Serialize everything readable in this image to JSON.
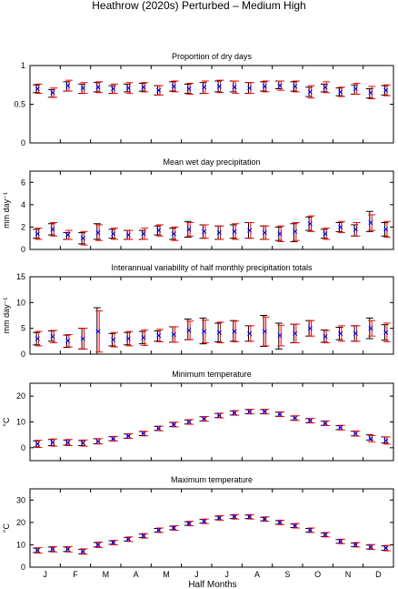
{
  "figure": {
    "title": "Heathrow (2020s) Perturbed – Medium High",
    "xlabel": "Half Months",
    "month_labels": [
      "J",
      "F",
      "M",
      "A",
      "M",
      "J",
      "J",
      "A",
      "S",
      "O",
      "N",
      "D"
    ]
  },
  "colors": {
    "observed": "#000000",
    "model": "#ff0000",
    "marker": "#0000ff"
  },
  "chart_data": [
    {
      "type": "scatter",
      "title": "Proportion of dry days",
      "ylabel": "",
      "ylim": [
        0,
        1
      ],
      "yticks": [
        0,
        0.5,
        1
      ],
      "ytick_labels": [
        "0",
        "0.5",
        "1"
      ],
      "x": [
        1,
        2,
        3,
        4,
        5,
        6,
        7,
        8,
        9,
        10,
        11,
        12,
        13,
        14,
        15,
        16,
        17,
        18,
        19,
        20,
        21,
        22,
        23,
        24
      ],
      "obs_mean": [
        0.7,
        0.64,
        0.73,
        0.7,
        0.72,
        0.69,
        0.71,
        0.72,
        0.68,
        0.73,
        0.7,
        0.71,
        0.73,
        0.73,
        0.71,
        0.73,
        0.75,
        0.73,
        0.66,
        0.71,
        0.66,
        0.69,
        0.64,
        0.68
      ],
      "obs_err": [
        0.05,
        0.05,
        0.06,
        0.06,
        0.06,
        0.05,
        0.05,
        0.05,
        0.06,
        0.06,
        0.06,
        0.07,
        0.07,
        0.07,
        0.07,
        0.06,
        0.05,
        0.06,
        0.06,
        0.05,
        0.05,
        0.06,
        0.06,
        0.06
      ],
      "model_mean": [
        0.7,
        0.65,
        0.74,
        0.71,
        0.72,
        0.7,
        0.71,
        0.72,
        0.68,
        0.73,
        0.7,
        0.72,
        0.73,
        0.72,
        0.71,
        0.73,
        0.74,
        0.73,
        0.66,
        0.72,
        0.66,
        0.7,
        0.65,
        0.68
      ],
      "model_err": [
        0.06,
        0.06,
        0.07,
        0.07,
        0.07,
        0.06,
        0.07,
        0.06,
        0.06,
        0.07,
        0.07,
        0.08,
        0.08,
        0.08,
        0.07,
        0.07,
        0.06,
        0.07,
        0.08,
        0.07,
        0.06,
        0.07,
        0.08,
        0.07
      ]
    },
    {
      "type": "scatter",
      "title": "Mean wet day precipitation",
      "ylabel": "mm day⁻¹",
      "ylim": [
        0,
        7
      ],
      "yticks": [
        0,
        2,
        4,
        6
      ],
      "ytick_labels": [
        "0",
        "2",
        "4",
        "6"
      ],
      "x": [
        1,
        2,
        3,
        4,
        5,
        6,
        7,
        8,
        9,
        10,
        11,
        12,
        13,
        14,
        15,
        16,
        17,
        18,
        19,
        20,
        21,
        22,
        23,
        24
      ],
      "obs_mean": [
        1.4,
        1.8,
        1.2,
        1.0,
        1.6,
        1.4,
        1.3,
        1.3,
        1.7,
        1.4,
        1.8,
        1.6,
        1.5,
        1.6,
        1.7,
        1.5,
        1.4,
        1.5,
        2.3,
        1.4,
        2.0,
        1.7,
        2.5,
        1.8
      ],
      "obs_err": [
        0.4,
        0.5,
        0.3,
        0.5,
        0.7,
        0.4,
        0.4,
        0.4,
        0.4,
        0.5,
        0.7,
        0.6,
        0.6,
        0.6,
        0.7,
        0.6,
        0.6,
        0.8,
        0.6,
        0.4,
        0.4,
        0.5,
        0.9,
        0.6
      ],
      "model_mean": [
        1.4,
        1.8,
        1.3,
        1.0,
        1.5,
        1.4,
        1.3,
        1.4,
        1.7,
        1.4,
        1.8,
        1.6,
        1.5,
        1.6,
        1.7,
        1.5,
        1.4,
        1.6,
        2.3,
        1.4,
        2.0,
        1.8,
        2.4,
        1.8
      ],
      "model_err": [
        0.5,
        0.6,
        0.4,
        0.6,
        0.7,
        0.5,
        0.4,
        0.5,
        0.5,
        0.6,
        0.6,
        0.6,
        0.6,
        0.7,
        0.7,
        0.6,
        0.7,
        0.8,
        0.7,
        0.5,
        0.5,
        0.6,
        0.7,
        0.7
      ]
    },
    {
      "type": "scatter",
      "title": "Interannual variability of half monthly precipitation totals",
      "ylabel": "mm day⁻¹",
      "ylim": [
        0,
        15
      ],
      "yticks": [
        0,
        5,
        10,
        15
      ],
      "ytick_labels": [
        "0",
        "5",
        "10",
        "15"
      ],
      "x": [
        1,
        2,
        3,
        4,
        5,
        6,
        7,
        8,
        9,
        10,
        11,
        12,
        13,
        14,
        15,
        16,
        17,
        18,
        19,
        20,
        21,
        22,
        23,
        24
      ],
      "obs_mean": [
        3.0,
        3.5,
        2.5,
        3.0,
        4.5,
        2.8,
        3.0,
        3.2,
        3.5,
        3.8,
        4.8,
        4.5,
        4.2,
        4.5,
        4.0,
        4.5,
        3.5,
        4.0,
        5.0,
        3.5,
        4.0,
        4.0,
        5.0,
        4.2
      ],
      "obs_err": [
        1.2,
        1.0,
        1.2,
        2.0,
        4.5,
        1.2,
        1.2,
        1.2,
        1.0,
        1.5,
        2.0,
        2.5,
        1.8,
        2.0,
        1.5,
        3.0,
        2.5,
        1.8,
        1.5,
        1.2,
        1.2,
        1.5,
        2.0,
        1.5
      ],
      "model_mean": [
        3.0,
        3.4,
        2.6,
        3.0,
        4.4,
        2.8,
        3.0,
        3.2,
        3.6,
        3.8,
        4.6,
        4.4,
        4.2,
        4.4,
        4.0,
        4.4,
        3.6,
        4.0,
        5.0,
        3.4,
        4.0,
        4.0,
        5.0,
        4.2
      ],
      "model_err": [
        1.4,
        1.2,
        1.2,
        2.0,
        4.0,
        1.4,
        1.4,
        1.5,
        1.2,
        1.5,
        1.8,
        2.2,
        2.0,
        2.0,
        1.5,
        2.8,
        2.0,
        1.8,
        1.5,
        1.2,
        1.5,
        1.5,
        1.5,
        1.8
      ]
    },
    {
      "type": "scatter",
      "title": "Minimum temperature",
      "ylabel": "°C",
      "ylim": [
        -5,
        25
      ],
      "yticks": [
        0,
        10,
        20
      ],
      "ytick_labels": [
        "0",
        "10",
        "20"
      ],
      "x": [
        1,
        2,
        3,
        4,
        5,
        6,
        7,
        8,
        9,
        10,
        11,
        12,
        13,
        14,
        15,
        16,
        17,
        18,
        19,
        20,
        21,
        22,
        23,
        24
      ],
      "obs_mean": [
        1.5,
        2.0,
        2.0,
        1.8,
        2.5,
        3.5,
        4.5,
        5.5,
        7.5,
        9.0,
        10.0,
        11.2,
        12.5,
        13.5,
        14.0,
        14.0,
        13.0,
        11.5,
        10.5,
        9.5,
        7.8,
        5.5,
        4.0,
        3.0
      ],
      "obs_err": [
        1.2,
        1.2,
        1.0,
        1.0,
        1.0,
        0.8,
        0.8,
        0.8,
        0.8,
        0.8,
        0.8,
        0.8,
        0.8,
        0.8,
        0.8,
        0.8,
        0.8,
        0.8,
        0.8,
        0.8,
        0.8,
        0.9,
        1.0,
        1.2
      ],
      "model_mean": [
        1.5,
        2.0,
        2.0,
        1.8,
        2.5,
        3.5,
        4.5,
        5.5,
        7.5,
        9.0,
        10.0,
        11.2,
        12.5,
        13.5,
        14.0,
        14.0,
        13.0,
        11.5,
        10.5,
        9.5,
        7.8,
        5.5,
        3.5,
        2.8
      ],
      "model_err": [
        1.4,
        1.4,
        1.2,
        1.2,
        1.0,
        0.9,
        0.9,
        0.9,
        0.9,
        0.9,
        0.9,
        0.9,
        0.9,
        0.9,
        0.9,
        0.9,
        0.9,
        0.9,
        0.9,
        0.9,
        0.9,
        1.0,
        1.2,
        1.4
      ]
    },
    {
      "type": "scatter",
      "title": "Maximum temperature",
      "ylabel": "°C",
      "ylim": [
        0,
        35
      ],
      "yticks": [
        0,
        10,
        20,
        30
      ],
      "ytick_labels": [
        "0",
        "10",
        "20",
        "30"
      ],
      "x": [
        1,
        2,
        3,
        4,
        5,
        6,
        7,
        8,
        9,
        10,
        11,
        12,
        13,
        14,
        15,
        16,
        17,
        18,
        19,
        20,
        21,
        22,
        23,
        24
      ],
      "obs_mean": [
        7.5,
        8.0,
        8.0,
        7.0,
        10.0,
        11.0,
        12.5,
        14.0,
        16.5,
        17.5,
        19.5,
        20.5,
        22.0,
        22.5,
        22.5,
        21.5,
        20.0,
        18.5,
        16.5,
        14.5,
        11.5,
        10.0,
        9.0,
        8.5
      ],
      "obs_err": [
        1.0,
        1.0,
        1.0,
        1.0,
        1.0,
        0.8,
        0.8,
        0.8,
        0.8,
        0.8,
        0.8,
        0.8,
        0.8,
        0.8,
        0.8,
        0.8,
        0.8,
        0.8,
        0.8,
        0.8,
        0.8,
        0.8,
        0.9,
        1.0
      ],
      "model_mean": [
        7.5,
        8.0,
        8.0,
        7.0,
        10.0,
        11.0,
        12.5,
        14.0,
        16.5,
        17.5,
        19.5,
        20.5,
        22.0,
        22.5,
        22.5,
        21.5,
        20.0,
        18.5,
        16.5,
        14.5,
        11.5,
        10.0,
        9.0,
        8.5
      ],
      "model_err": [
        1.2,
        1.2,
        1.2,
        1.2,
        1.2,
        1.0,
        1.0,
        1.0,
        1.0,
        1.0,
        1.0,
        1.0,
        1.0,
        1.0,
        1.0,
        1.0,
        1.0,
        1.0,
        1.0,
        1.0,
        1.0,
        1.0,
        1.1,
        1.2
      ]
    }
  ]
}
